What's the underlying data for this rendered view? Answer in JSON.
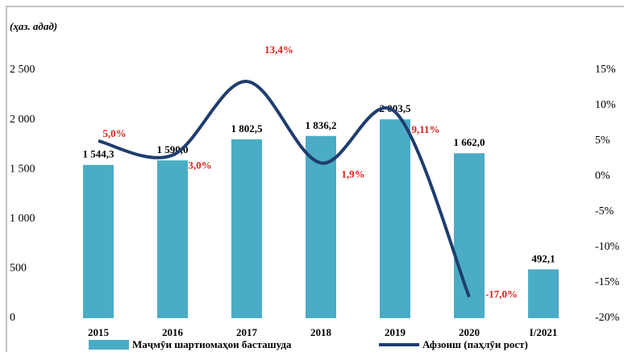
{
  "chart_data": {
    "type": "bar_line",
    "subtitle": "(ҳаз. адад)",
    "categories": [
      "2015",
      "2016",
      "2017",
      "2018",
      "2019",
      "2020",
      "I/2021"
    ],
    "series": [
      {
        "name": "Маҷмӯи шартномаҳои басташуда",
        "type": "bar",
        "color": "#4bacc6",
        "values": [
          1544.3,
          1590.0,
          1802.5,
          1836.2,
          2003.5,
          1662.0,
          492.1
        ],
        "value_labels": [
          "1 544,3",
          "1 590,0",
          "1 802,5",
          "1 836,2",
          "2 003,5",
          "1 662,0",
          "492,1"
        ]
      },
      {
        "name": "Афзоиш (паҳлӯи рост)",
        "type": "line",
        "axis": "y2",
        "color": "#1f3d6e",
        "values": [
          5.0,
          3.0,
          13.4,
          1.9,
          9.11,
          -17.0,
          null
        ],
        "value_labels": [
          "5,0%",
          "3,0%",
          "13,4%",
          "1,9%",
          "9,11%",
          "-17,0%",
          null
        ]
      }
    ],
    "ylim": [
      0,
      2500
    ],
    "yticks": [
      0,
      500,
      {
        "value": 1000,
        "label": "1 000"
      },
      {
        "value": 1500,
        "label": "1 500"
      },
      {
        "value": 2000,
        "label": "2 000"
      },
      {
        "value": 2500,
        "label": "2 500"
      }
    ],
    "y2lim": [
      -20,
      15
    ],
    "y2ticks": [
      {
        "value": -20,
        "label": "-20%"
      },
      {
        "value": -15,
        "label": "-15%"
      },
      {
        "value": -10,
        "label": "-10%"
      },
      {
        "value": -5,
        "label": "-5%"
      },
      {
        "value": 0,
        "label": "0%"
      },
      {
        "value": 5,
        "label": "5%"
      },
      {
        "value": 10,
        "label": "10%"
      },
      {
        "value": 15,
        "label": "15%"
      }
    ]
  }
}
